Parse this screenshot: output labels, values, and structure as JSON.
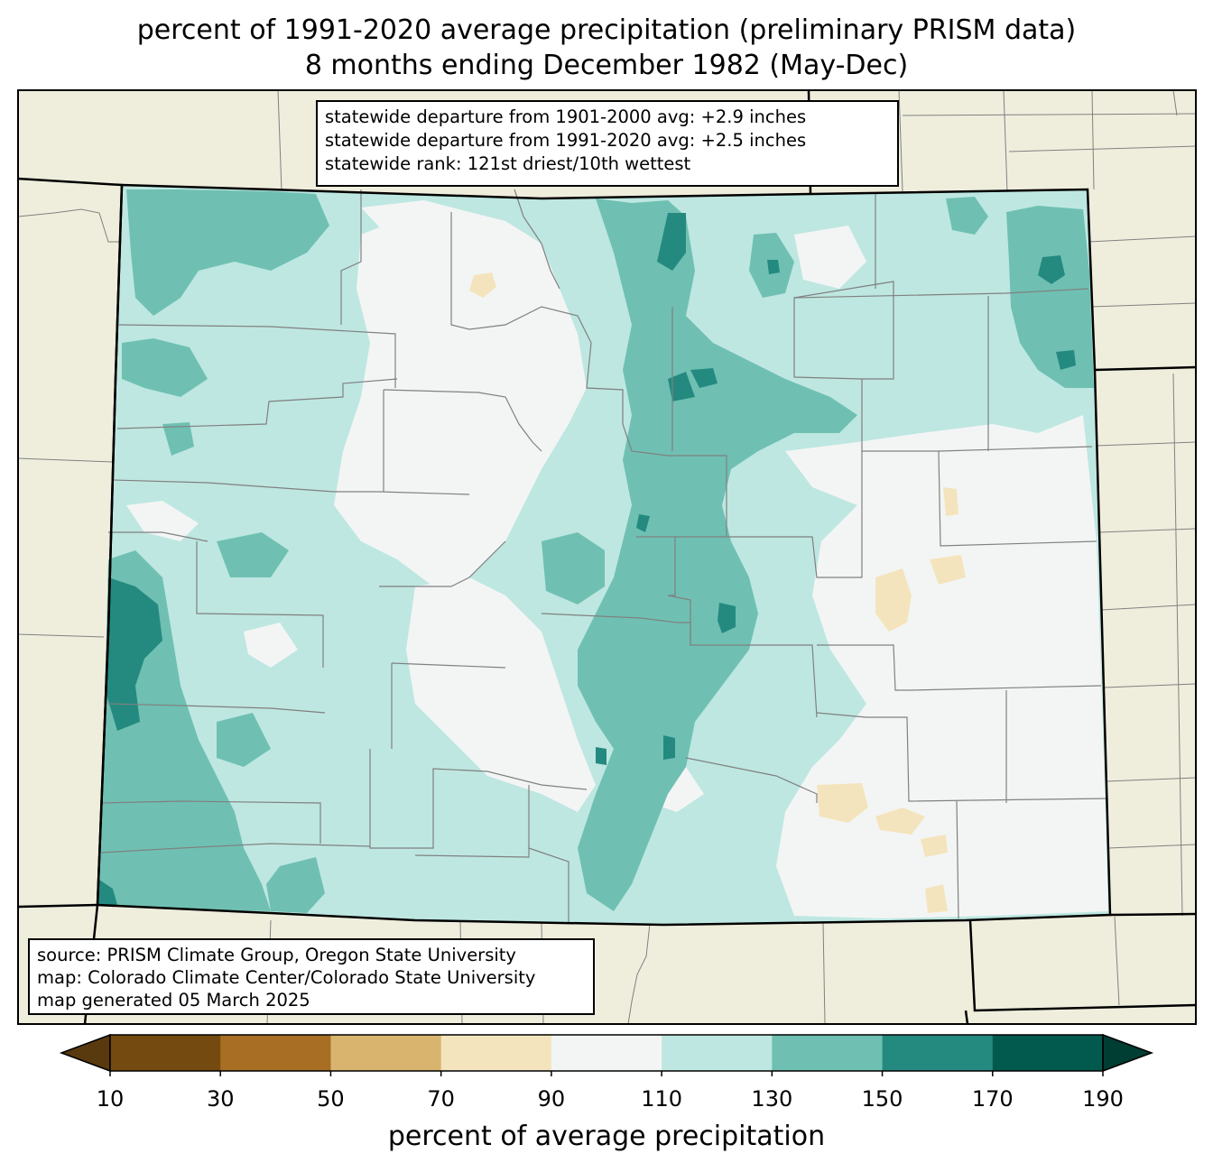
{
  "title": {
    "line1": "percent of 1991-2020 average precipitation (preliminary PRISM data)",
    "line2": "8 months ending December 1982 (May-Dec)"
  },
  "stats": {
    "line1": "statewide departure from 1901-2000 avg: +2.9 inches",
    "line2": "statewide departure from 1991-2020 avg: +2.5 inches",
    "line3": "statewide rank: 121st driest/10th wettest"
  },
  "source": {
    "line1": "source: PRISM Climate Group, Oregon State University",
    "line2": "map: Colorado Climate Center/Colorado State University",
    "line3": "map generated 05 March 2025"
  },
  "colorbar": {
    "label": "percent of average precipitation",
    "ticks": [
      "10",
      "30",
      "50",
      "70",
      "90",
      "110",
      "130",
      "150",
      "170",
      "190"
    ],
    "colors": [
      "#744a10",
      "#a76e24",
      "#d8b46e",
      "#f4e4bd",
      "#f3f5f4",
      "#bee7e1",
      "#6fc0b2",
      "#248a80",
      "#025a4f"
    ],
    "under_color": "#593a0e",
    "over_color": "#003d33"
  },
  "map_colors": {
    "land_background": "#efeedd",
    "county_lines": "#808080",
    "state_lines": "#000000"
  }
}
